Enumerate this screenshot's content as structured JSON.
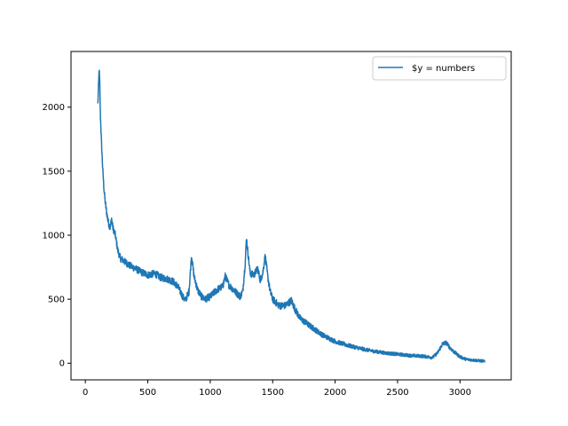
{
  "chart_data": {
    "type": "line",
    "title": "",
    "xlabel": "",
    "ylabel": "",
    "xlim": [
      -115,
      3410
    ],
    "ylim": [
      -130,
      2435
    ],
    "x_ticks": [
      0,
      500,
      1000,
      1500,
      2000,
      2500,
      3000
    ],
    "y_ticks": [
      0,
      500,
      1000,
      1500,
      2000
    ],
    "grid": false,
    "legend_position": "upper-right",
    "series": [
      {
        "name": "$y = numbers",
        "color": "#1f77b4",
        "noise": 28,
        "points": [
          [
            100,
            2020
          ],
          [
            105,
            2150
          ],
          [
            110,
            2300
          ],
          [
            115,
            2200
          ],
          [
            120,
            1950
          ],
          [
            130,
            1700
          ],
          [
            140,
            1500
          ],
          [
            150,
            1350
          ],
          [
            160,
            1250
          ],
          [
            170,
            1180
          ],
          [
            180,
            1120
          ],
          [
            190,
            1080
          ],
          [
            200,
            1060
          ],
          [
            210,
            1130
          ],
          [
            220,
            1060
          ],
          [
            240,
            1000
          ],
          [
            260,
            880
          ],
          [
            280,
            820
          ],
          [
            320,
            790
          ],
          [
            360,
            760
          ],
          [
            400,
            740
          ],
          [
            450,
            710
          ],
          [
            500,
            690
          ],
          [
            560,
            700
          ],
          [
            600,
            670
          ],
          [
            650,
            660
          ],
          [
            700,
            640
          ],
          [
            740,
            600
          ],
          [
            780,
            520
          ],
          [
            800,
            490
          ],
          [
            830,
            560
          ],
          [
            850,
            840
          ],
          [
            870,
            680
          ],
          [
            900,
            570
          ],
          [
            930,
            520
          ],
          [
            960,
            500
          ],
          [
            1000,
            520
          ],
          [
            1050,
            570
          ],
          [
            1100,
            600
          ],
          [
            1120,
            680
          ],
          [
            1150,
            610
          ],
          [
            1200,
            560
          ],
          [
            1240,
            520
          ],
          [
            1260,
            560
          ],
          [
            1280,
            780
          ],
          [
            1290,
            980
          ],
          [
            1300,
            880
          ],
          [
            1320,
            700
          ],
          [
            1350,
            690
          ],
          [
            1380,
            740
          ],
          [
            1400,
            650
          ],
          [
            1420,
            700
          ],
          [
            1440,
            840
          ],
          [
            1460,
            680
          ],
          [
            1480,
            560
          ],
          [
            1500,
            500
          ],
          [
            1550,
            450
          ],
          [
            1600,
            450
          ],
          [
            1650,
            490
          ],
          [
            1680,
            420
          ],
          [
            1720,
            350
          ],
          [
            1800,
            290
          ],
          [
            1900,
            220
          ],
          [
            2000,
            170
          ],
          [
            2100,
            140
          ],
          [
            2200,
            115
          ],
          [
            2300,
            95
          ],
          [
            2400,
            80
          ],
          [
            2500,
            70
          ],
          [
            2600,
            60
          ],
          [
            2700,
            55
          ],
          [
            2780,
            45
          ],
          [
            2820,
            80
          ],
          [
            2860,
            150
          ],
          [
            2890,
            160
          ],
          [
            2920,
            120
          ],
          [
            2950,
            90
          ],
          [
            3000,
            50
          ],
          [
            3050,
            30
          ],
          [
            3100,
            25
          ],
          [
            3150,
            20
          ],
          [
            3200,
            15
          ]
        ]
      }
    ]
  }
}
